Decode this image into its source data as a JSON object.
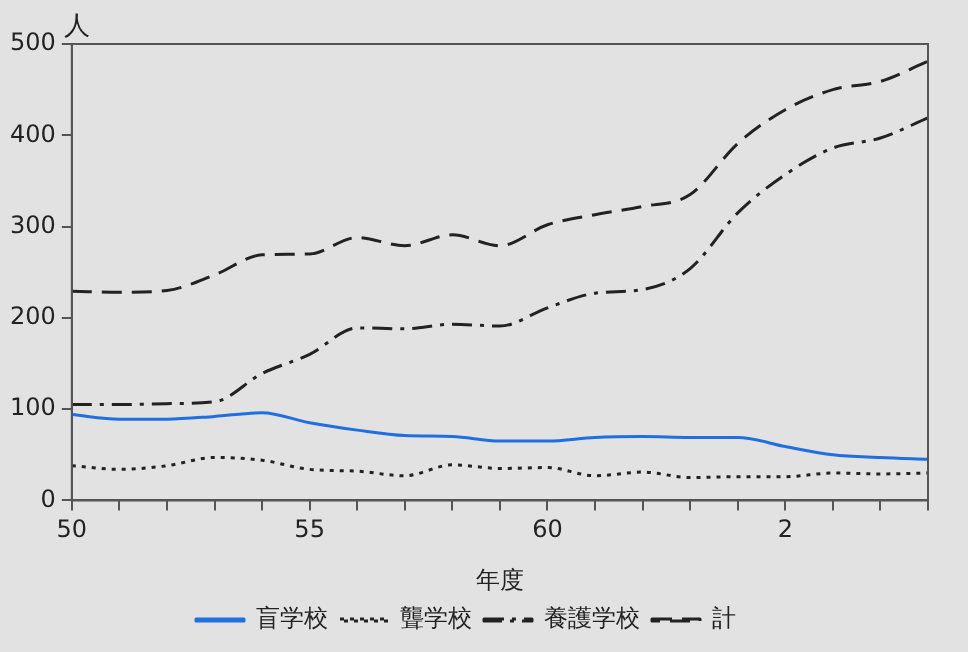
{
  "chart_data": {
    "type": "line",
    "ylabel": "人",
    "xlabel": "年度",
    "categories": [
      "50",
      null,
      null,
      null,
      null,
      "55",
      null,
      null,
      null,
      null,
      "60",
      null,
      null,
      null,
      null,
      "2",
      null,
      null,
      null
    ],
    "series": [
      {
        "name": "盲学校",
        "color": "#1f6fe0",
        "line_style": "solid",
        "values": [
          94,
          89,
          89,
          92,
          96,
          85,
          77,
          71,
          70,
          65,
          65,
          69,
          70,
          69,
          69,
          59,
          50,
          47,
          45
        ]
      },
      {
        "name": "聾学校",
        "color": "#222222",
        "line_style": "dotted",
        "values": [
          38,
          34,
          38,
          47,
          44,
          34,
          32,
          27,
          39,
          35,
          36,
          27,
          31,
          25,
          26,
          26,
          30,
          29,
          30
        ]
      },
      {
        "name": "養護学校",
        "color": "#222222",
        "line_style": "dashdot",
        "values": [
          105,
          105,
          106,
          108,
          139,
          160,
          189,
          188,
          193,
          191,
          211,
          227,
          231,
          254,
          315,
          357,
          386,
          397,
          419
        ]
      },
      {
        "name": "計",
        "color": "#222222",
        "line_style": "dashed",
        "values": [
          229,
          228,
          230,
          247,
          269,
          270,
          288,
          279,
          291,
          279,
          302,
          313,
          322,
          335,
          391,
          428,
          450,
          459,
          481
        ]
      }
    ],
    "ylim": [
      0,
      500
    ],
    "yticks": [
      0,
      100,
      200,
      300,
      400,
      500
    ],
    "grid": false,
    "legend": "bottom"
  }
}
